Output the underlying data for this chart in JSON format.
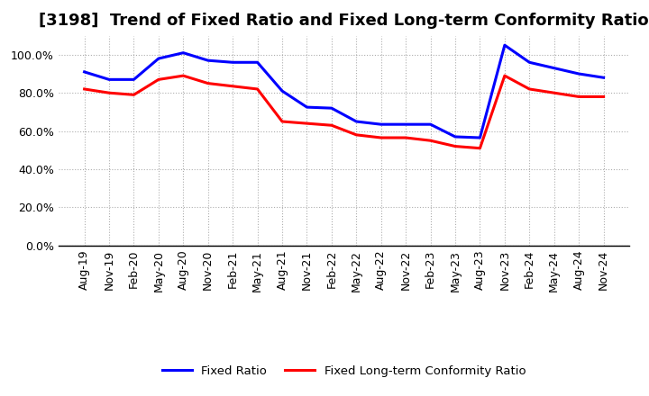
{
  "title": "[3198]  Trend of Fixed Ratio and Fixed Long-term Conformity Ratio",
  "x_labels": [
    "Aug-19",
    "Nov-19",
    "Feb-20",
    "May-20",
    "Aug-20",
    "Nov-20",
    "Feb-21",
    "May-21",
    "Aug-21",
    "Nov-21",
    "Feb-22",
    "May-22",
    "Aug-22",
    "Nov-22",
    "Feb-23",
    "May-23",
    "Aug-23",
    "Nov-23",
    "Feb-24",
    "May-24",
    "Aug-24",
    "Nov-24"
  ],
  "fixed_ratio": [
    91.0,
    87.0,
    87.0,
    98.0,
    101.0,
    97.0,
    96.0,
    96.0,
    81.0,
    72.5,
    72.0,
    65.0,
    63.5,
    63.5,
    63.5,
    57.0,
    56.5,
    105.0,
    96.0,
    93.0,
    90.0,
    88.0
  ],
  "fixed_lt_ratio": [
    82.0,
    80.0,
    79.0,
    87.0,
    89.0,
    85.0,
    83.5,
    82.0,
    65.0,
    64.0,
    63.0,
    58.0,
    56.5,
    56.5,
    55.0,
    52.0,
    51.0,
    89.0,
    82.0,
    80.0,
    78.0,
    78.0
  ],
  "fixed_ratio_color": "#0000FF",
  "fixed_lt_ratio_color": "#FF0000",
  "ylim": [
    0,
    110
  ],
  "yticks": [
    0,
    20,
    40,
    60,
    80,
    100
  ],
  "background_color": "#FFFFFF",
  "grid_color": "#999999",
  "legend_fixed_ratio": "Fixed Ratio",
  "legend_fixed_lt_ratio": "Fixed Long-term Conformity Ratio",
  "title_fontsize": 13,
  "axis_fontsize": 9,
  "line_width": 2.2
}
